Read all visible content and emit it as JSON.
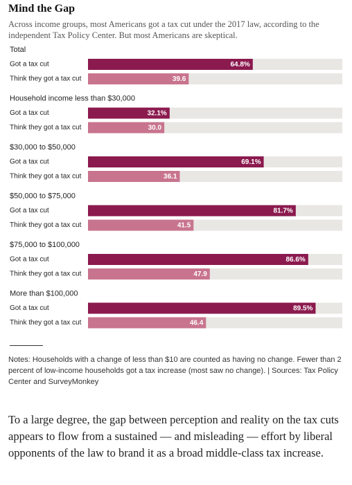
{
  "chart_data": {
    "type": "bar",
    "title": "Mind the Gap",
    "subtitle": "Across income groups, most Americans got a tax cut under the 2017 law, according to the independent Tax Policy Center. But most Americans are skeptical.",
    "xlim": [
      0,
      100
    ],
    "colors": [
      "#8b1a4e",
      "#c8748f"
    ],
    "track_color": "#e9e7e3",
    "groups": [
      {
        "name": "Total",
        "categories": [
          "Got a tax cut",
          "Think they got a tax cut"
        ],
        "values": [
          64.8,
          39.6
        ],
        "value_labels": [
          "64.8%",
          "39.6"
        ]
      },
      {
        "name": "Household income less than $30,000",
        "categories": [
          "Got a tax cut",
          "Think they got a tax cut"
        ],
        "values": [
          32.1,
          30.0
        ],
        "value_labels": [
          "32.1%",
          "30.0"
        ]
      },
      {
        "name": "$30,000 to $50,000",
        "categories": [
          "Got a tax cut",
          "Think they got a tax cut"
        ],
        "values": [
          69.1,
          36.1
        ],
        "value_labels": [
          "69.1%",
          "36.1"
        ]
      },
      {
        "name": "$50,000 to $75,000",
        "categories": [
          "Got a tax cut",
          "Think they got a tax cut"
        ],
        "values": [
          81.7,
          41.5
        ],
        "value_labels": [
          "81.7%",
          "41.5"
        ]
      },
      {
        "name": "$75,000 to $100,000",
        "categories": [
          "Got a tax cut",
          "Think they got a tax cut"
        ],
        "values": [
          86.6,
          47.9
        ],
        "value_labels": [
          "86.6%",
          "47.9"
        ]
      },
      {
        "name": "More than $100,000",
        "categories": [
          "Got a tax cut",
          "Think they got a tax cut"
        ],
        "values": [
          89.5,
          46.4
        ],
        "value_labels": [
          "89.5%",
          "46.4"
        ]
      }
    ],
    "notes": "Notes: Households with a change of less than $10 are counted as having no change. Fewer than 2 percent of low-income households got a tax increase (most saw no change). | Sources: Tax Policy Center and SurveyMonkey"
  },
  "body_text": "To a large degree, the gap between perception and reality on the tax cuts appears to flow from a sustained — and misleading — effort by liberal opponents of the law to brand it as a broad middle-class tax increase."
}
